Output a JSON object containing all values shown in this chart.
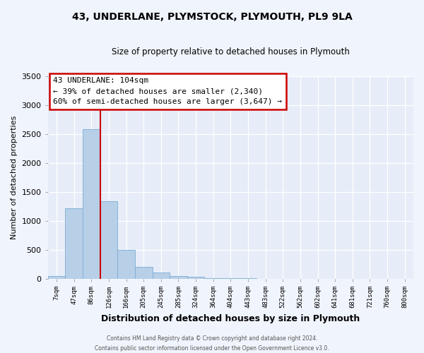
{
  "title": "43, UNDERLANE, PLYMSTOCK, PLYMOUTH, PL9 9LA",
  "subtitle": "Size of property relative to detached houses in Plymouth",
  "xlabel": "Distribution of detached houses by size in Plymouth",
  "ylabel": "Number of detached properties",
  "bar_labels": [
    "7sqm",
    "47sqm",
    "86sqm",
    "126sqm",
    "166sqm",
    "205sqm",
    "245sqm",
    "285sqm",
    "324sqm",
    "364sqm",
    "404sqm",
    "443sqm",
    "483sqm",
    "522sqm",
    "562sqm",
    "602sqm",
    "641sqm",
    "681sqm",
    "721sqm",
    "760sqm",
    "800sqm"
  ],
  "bar_values": [
    50,
    1220,
    2590,
    1340,
    500,
    200,
    110,
    50,
    30,
    15,
    10,
    5,
    3,
    2,
    2,
    1,
    1,
    1,
    1,
    0,
    0
  ],
  "bar_color": "#b8cfe8",
  "bar_edge_color": "#7aadd4",
  "vline_x": 2.5,
  "vline_color": "#cc0000",
  "annotation_title": "43 UNDERLANE: 104sqm",
  "annotation_line2": "← 39% of detached houses are smaller (2,340)",
  "annotation_line3": "60% of semi-detached houses are larger (3,647) →",
  "annotation_box_color": "#cc0000",
  "ylim": [
    0,
    3500
  ],
  "yticks": [
    0,
    500,
    1000,
    1500,
    2000,
    2500,
    3000,
    3500
  ],
  "footer_line1": "Contains HM Land Registry data © Crown copyright and database right 2024.",
  "footer_line2": "Contains public sector information licensed under the Open Government Licence v3.0.",
  "background_color": "#f0f4fc",
  "plot_background": "#e6edf8",
  "title_fontsize": 10,
  "subtitle_fontsize": 8.5,
  "ylabel_fontsize": 8,
  "xlabel_fontsize": 9
}
